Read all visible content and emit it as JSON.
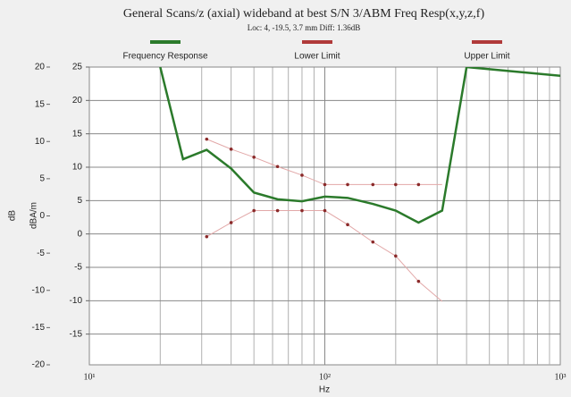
{
  "chart_data": {
    "type": "line",
    "title": "General Scans/z (axial) wideband at best S/N 3/ABM Freq Resp(x,y,z,f)",
    "subtitle": "Loc: 4, -19.5, 3.7 mm Diff: 1.36dB",
    "xlabel": "Hz",
    "ylabel": "dB",
    "y2label": "dBA/m",
    "xscale": "log",
    "grid": true,
    "legend": "top",
    "xlim": [
      10,
      1000
    ],
    "xticks": [
      {
        "value": 10,
        "label": "10¹"
      },
      {
        "value": 100,
        "label": "10²"
      },
      {
        "value": 1000,
        "label": "10³"
      }
    ],
    "ylim": [
      -20,
      20
    ],
    "yticks": [
      20,
      15,
      10,
      5,
      0,
      -5,
      -10,
      -15,
      -20
    ],
    "y2lim": [
      -19.6,
      25
    ],
    "y2ticks": [
      25,
      20,
      15,
      10,
      5,
      0,
      -5,
      -10,
      -15
    ],
    "series": [
      {
        "name": "Frequency Response",
        "color": "#2b7a2b",
        "axis": "y2",
        "x": [
          20,
          25,
          31.5,
          40,
          50,
          63,
          80,
          100,
          125,
          160,
          200,
          250,
          315,
          400,
          1000
        ],
        "values": [
          25,
          11.2,
          12.6,
          9.8,
          6.2,
          5.2,
          4.9,
          5.6,
          5.4,
          4.5,
          3.5,
          1.7,
          3.5,
          25,
          23.7
        ]
      },
      {
        "name": "Lower Limit",
        "color": "#b03a3a",
        "line_color": "#e2a8a8",
        "marker_color": "#8b2a2a",
        "axis": "y2",
        "x": [
          31.5,
          40,
          50,
          63,
          80,
          100,
          125,
          160,
          200,
          250,
          315
        ],
        "values": [
          -0.4,
          1.7,
          3.5,
          3.5,
          3.5,
          3.5,
          1.4,
          -1.2,
          -3.3,
          -7.1,
          -10.1
        ]
      },
      {
        "name": "Upper Limit",
        "color": "#b03a3a",
        "line_color": "#e2a8a8",
        "marker_color": "#8b2a2a",
        "axis": "y2",
        "x": [
          31.5,
          40,
          50,
          63,
          80,
          100,
          125,
          160,
          200,
          250,
          315
        ],
        "values": [
          14.2,
          12.7,
          11.5,
          10.1,
          8.8,
          7.4,
          7.4,
          7.4,
          7.4,
          7.4,
          7.4
        ]
      }
    ]
  }
}
